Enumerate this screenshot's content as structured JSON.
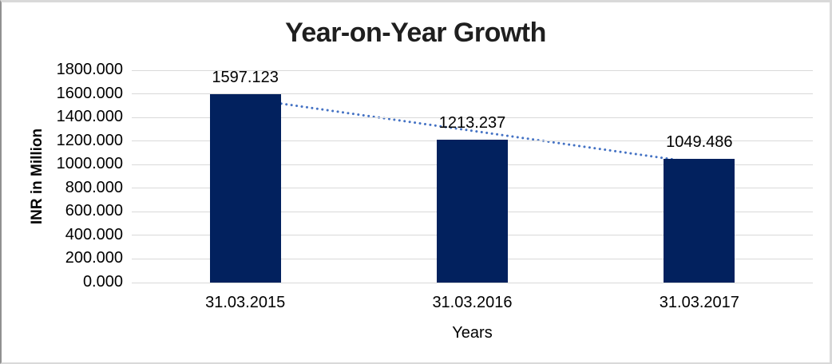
{
  "chart_data": {
    "type": "bar",
    "title": "Year-on-Year Growth",
    "categories": [
      "31.03.2015",
      "31.03.2016",
      "31.03.2017"
    ],
    "values": [
      1597.123,
      1213.237,
      1049.486
    ],
    "data_labels": [
      "1597.123",
      "1213.237",
      "1049.486"
    ],
    "xlabel": "Years",
    "ylabel": "INR in Million",
    "ylim": [
      0,
      1800
    ],
    "ytick_step": 200,
    "ytick_decimals": 3,
    "grid": true,
    "legend_position": "none",
    "trendline": {
      "type": "linear",
      "style": "dotted"
    },
    "colors": {
      "bar": "#02215E",
      "trendline": "#4472C4",
      "gridline": "#D9D9D9",
      "title_text": "#1F1F1F",
      "axis_text": "#000000"
    }
  }
}
